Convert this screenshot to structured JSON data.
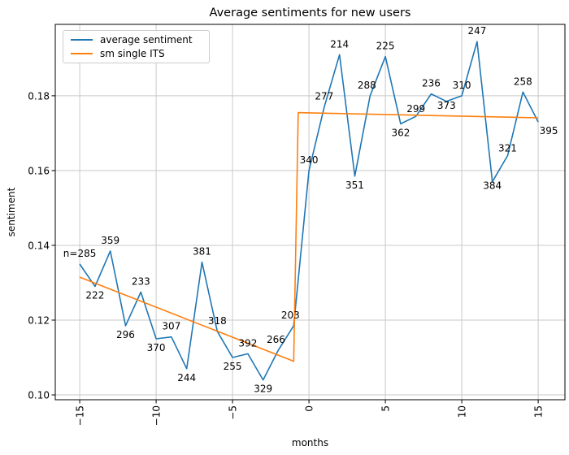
{
  "figure": {
    "title": "Average sentiments for new users",
    "xlabel": "months",
    "ylabel": "sentiment"
  },
  "legend": {
    "items": [
      {
        "label": "average sentiment",
        "color": "#1f77b4"
      },
      {
        "label": "sm single ITS",
        "color": "#ff7f0e"
      }
    ]
  },
  "colors": {
    "average_sentiment": "#1f77b4",
    "its_line": "#ff7f0e",
    "grid": "#c9c9c9",
    "spine": "#000000",
    "text": "#000000"
  },
  "axes": {
    "xlim": [
      -16.6,
      16.75
    ],
    "ylim": [
      0.0987,
      0.1991
    ],
    "x_ticks": [
      -15,
      -10,
      -5,
      0,
      5,
      10,
      15
    ],
    "x_tick_labels": [
      "−15",
      "−10",
      "−5",
      "0",
      "5",
      "10",
      "15"
    ],
    "y_ticks": [
      0.1,
      0.12,
      0.14,
      0.16,
      0.18
    ],
    "y_tick_labels": [
      "0.10",
      "0.12",
      "0.14",
      "0.16",
      "0.18"
    ],
    "grid": true
  },
  "chart_data": {
    "type": "line",
    "title": "Average sentiments for new users",
    "xlabel": "months",
    "ylabel": "sentiment",
    "xlim": [
      -16.6,
      16.75
    ],
    "ylim": [
      0.0987,
      0.1991
    ],
    "legend_position": "upper left",
    "series": [
      {
        "name": "average sentiment",
        "color": "#1f77b4",
        "points": [
          {
            "month": -15,
            "n": 285,
            "sentiment": 0.135,
            "label": "n=285",
            "label_pos": "above"
          },
          {
            "month": -14,
            "n": 222,
            "sentiment": 0.129,
            "label": "222",
            "label_pos": "below"
          },
          {
            "month": -13,
            "n": 359,
            "sentiment": 0.1385,
            "label": "359",
            "label_pos": "above"
          },
          {
            "month": -12,
            "n": 296,
            "sentiment": 0.1185,
            "label": "296",
            "label_pos": "below"
          },
          {
            "month": -11,
            "n": 233,
            "sentiment": 0.1275,
            "label": "233",
            "label_pos": "above"
          },
          {
            "month": -10,
            "n": 370,
            "sentiment": 0.115,
            "label": "370",
            "label_pos": "below"
          },
          {
            "month": -9,
            "n": 307,
            "sentiment": 0.1155,
            "label": "307",
            "label_pos": "above"
          },
          {
            "month": -8,
            "n": 244,
            "sentiment": 0.107,
            "label": "244",
            "label_pos": "below"
          },
          {
            "month": -7,
            "n": 381,
            "sentiment": 0.1355,
            "label": "381",
            "label_pos": "above"
          },
          {
            "month": -6,
            "n": 318,
            "sentiment": 0.117,
            "label": "318",
            "label_pos": "above"
          },
          {
            "month": -5,
            "n": 255,
            "sentiment": 0.11,
            "label": "255",
            "label_pos": "below"
          },
          {
            "month": -4,
            "n": 392,
            "sentiment": 0.111,
            "label": "392",
            "label_pos": "above"
          },
          {
            "month": -3,
            "n": 329,
            "sentiment": 0.104,
            "label": "329",
            "label_pos": "below"
          },
          {
            "month": -2,
            "n": 266,
            "sentiment": 0.112,
            "label": "266",
            "label_pos": "above",
            "label_dx": -3
          },
          {
            "month": -1,
            "n": 203,
            "sentiment": 0.1185,
            "label": "203",
            "label_pos": "above",
            "label_dx": -4
          },
          {
            "month": 0,
            "n": 340,
            "sentiment": 0.16,
            "label": "340",
            "label_pos": "above"
          },
          {
            "month": 1,
            "n": 277,
            "sentiment": 0.177,
            "label": "277",
            "label_pos": "above"
          },
          {
            "month": 2,
            "n": 214,
            "sentiment": 0.191,
            "label": "214",
            "label_pos": "above"
          },
          {
            "month": 3,
            "n": 351,
            "sentiment": 0.1585,
            "label": "351",
            "label_pos": "below"
          },
          {
            "month": 4,
            "n": 288,
            "sentiment": 0.18,
            "label": "288",
            "label_pos": "above",
            "label_dx": -4
          },
          {
            "month": 5,
            "n": 225,
            "sentiment": 0.1905,
            "label": "225",
            "label_pos": "above"
          },
          {
            "month": 6,
            "n": 362,
            "sentiment": 0.1725,
            "label": "362",
            "label_pos": "below"
          },
          {
            "month": 7,
            "n": 299,
            "sentiment": 0.1745,
            "label": "299",
            "label_pos": "above",
            "label_dy": 4
          },
          {
            "month": 8,
            "n": 236,
            "sentiment": 0.1805,
            "label": "236",
            "label_pos": "above"
          },
          {
            "month": 9,
            "n": 373,
            "sentiment": 0.1785,
            "label": "373",
            "label_pos": "below",
            "label_dy": -6
          },
          {
            "month": 10,
            "n": 310,
            "sentiment": 0.18,
            "label": "310",
            "label_pos": "above"
          },
          {
            "month": 11,
            "n": 247,
            "sentiment": 0.1945,
            "label": "247",
            "label_pos": "above"
          },
          {
            "month": 12,
            "n": 384,
            "sentiment": 0.157,
            "label": "384",
            "label_pos": "below",
            "label_dy": -6
          },
          {
            "month": 13,
            "n": 321,
            "sentiment": 0.164,
            "label": "321",
            "label_pos": "above",
            "label_dy": 4
          },
          {
            "month": 14,
            "n": 258,
            "sentiment": 0.181,
            "label": "258",
            "label_pos": "above"
          },
          {
            "month": 15,
            "n": 395,
            "sentiment": 0.173,
            "label": "395",
            "label_pos": "below",
            "label_dx": 13
          }
        ]
      },
      {
        "name": "sm single ITS",
        "color": "#ff7f0e",
        "points": [
          {
            "month": -15,
            "sentiment": 0.1315
          },
          {
            "month": -1,
            "sentiment": 0.109
          },
          {
            "month": -0.7,
            "sentiment": 0.1755
          },
          {
            "month": 15,
            "sentiment": 0.1741
          }
        ]
      }
    ]
  }
}
